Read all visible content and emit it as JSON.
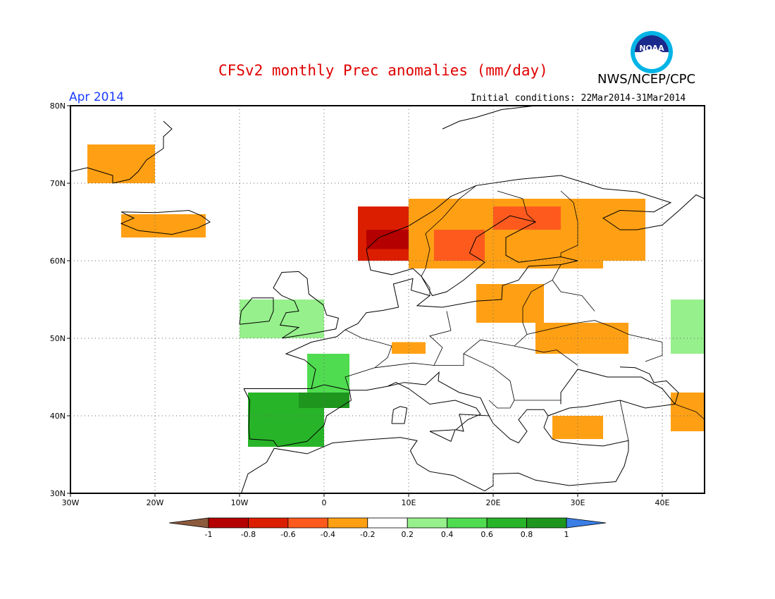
{
  "title": "CFSv2 monthly Prec anomalies (mm/day)",
  "organization": "NWS/NCEP/CPC",
  "logo_text": "NOAA",
  "month_label": "Apr 2014",
  "initial_conditions": "Initial conditions: 22Mar2014-31Mar2014",
  "map": {
    "lon_range": [
      -30,
      45
    ],
    "lat_range": [
      30,
      80
    ],
    "lon_ticks": [
      {
        "value": -30,
        "label": "30W"
      },
      {
        "value": -20,
        "label": "20W"
      },
      {
        "value": -10,
        "label": "10W"
      },
      {
        "value": 0,
        "label": "0"
      },
      {
        "value": 10,
        "label": "10E"
      },
      {
        "value": 20,
        "label": "20E"
      },
      {
        "value": 30,
        "label": "30E"
      },
      {
        "value": 40,
        "label": "40E"
      }
    ],
    "lat_ticks": [
      {
        "value": 30,
        "label": "30N"
      },
      {
        "value": 40,
        "label": "40N"
      },
      {
        "value": 50,
        "label": "50N"
      },
      {
        "value": 60,
        "label": "60N"
      },
      {
        "value": 70,
        "label": "70N"
      },
      {
        "value": 80,
        "label": "80N"
      }
    ],
    "grid": "dotted"
  },
  "colorbar": {
    "labels": [
      "-1",
      "-0.8",
      "-0.6",
      "-0.4",
      "-0.2",
      "0.2",
      "0.4",
      "0.6",
      "0.8",
      "1"
    ],
    "colors": [
      "#8c5a3c",
      "#b40000",
      "#dc1e00",
      "#ff5a1e",
      "#ffa014",
      "#ffffff",
      "#96f08c",
      "#50dc50",
      "#28b428",
      "#1e961e",
      "#3a7ee6"
    ]
  },
  "anomaly_regions": [
    {
      "name": "Norway coast",
      "class": -3,
      "lon": [
        4,
        15
      ],
      "lat": [
        60,
        67
      ]
    },
    {
      "name": "Norway coast inner",
      "class": -4,
      "lon": [
        5,
        11
      ],
      "lat": [
        61.5,
        64
      ]
    },
    {
      "name": "Sweden/Finland",
      "class": -1,
      "lon": [
        10,
        33
      ],
      "lat": [
        59,
        68
      ]
    },
    {
      "name": "Finland core",
      "class": -2,
      "lon": [
        20,
        28
      ],
      "lat": [
        64,
        67
      ]
    },
    {
      "name": "South Scandinavia",
      "class": -2,
      "lon": [
        13,
        19
      ],
      "lat": [
        60,
        64
      ]
    },
    {
      "name": "NW Russia",
      "class": -1,
      "lon": [
        28,
        38
      ],
      "lat": [
        60,
        68
      ]
    },
    {
      "name": "Baltic/Poland",
      "class": -1,
      "lon": [
        18,
        26
      ],
      "lat": [
        52,
        57
      ]
    },
    {
      "name": "Ukraine/Russia",
      "class": -1,
      "lon": [
        25,
        36
      ],
      "lat": [
        48,
        52
      ]
    },
    {
      "name": "Central Europe",
      "class": -1,
      "lon": [
        8,
        12
      ],
      "lat": [
        48,
        49.5
      ]
    },
    {
      "name": "Turkey",
      "class": -1,
      "lon": [
        27,
        33
      ],
      "lat": [
        37,
        40
      ]
    },
    {
      "name": "East Caspian",
      "class": -1,
      "lon": [
        41,
        45
      ],
      "lat": [
        38,
        43
      ]
    },
    {
      "name": "Iberia west",
      "class": 5,
      "lon": [
        -9,
        -7
      ],
      "lat": [
        37,
        43
      ]
    },
    {
      "name": "Iberia green",
      "class": 3,
      "lon": [
        -9,
        0
      ],
      "lat": [
        36,
        43
      ]
    },
    {
      "name": "Iberia north",
      "class": 4,
      "lon": [
        -3,
        3
      ],
      "lat": [
        41,
        43
      ]
    },
    {
      "name": "France west",
      "class": 2,
      "lon": [
        -2,
        3
      ],
      "lat": [
        43,
        48
      ]
    },
    {
      "name": "British Isles",
      "class": 1,
      "lon": [
        -10,
        0
      ],
      "lat": [
        50,
        55
      ]
    },
    {
      "name": "Russia east",
      "class": 1,
      "lon": [
        41,
        45
      ],
      "lat": [
        48,
        55
      ]
    },
    {
      "name": "Greenland",
      "class": -1,
      "lon": [
        -28,
        -20
      ],
      "lat": [
        70,
        75
      ]
    },
    {
      "name": "Iceland",
      "class": -1,
      "lon": [
        -24,
        -14
      ],
      "lat": [
        63,
        66
      ]
    }
  ]
}
